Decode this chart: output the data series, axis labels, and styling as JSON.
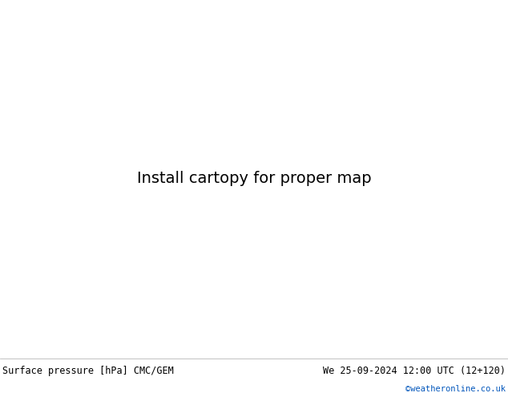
{
  "title_left": "Surface pressure [hPa] CMC/GEM",
  "title_right": "We 25-09-2024 12:00 UTC (12+120)",
  "credit": "©weatheronline.co.uk",
  "figsize": [
    6.34,
    4.9
  ],
  "dpi": 100,
  "label_bar_height": 0.092,
  "bg_color": "#d8d8d8",
  "land_color": "#b5d68c",
  "border_color": "#888888",
  "sea_color": "#d8d8d8",
  "lon_min": -30,
  "lon_max": 80,
  "lat_min": -50,
  "lat_max": 45
}
